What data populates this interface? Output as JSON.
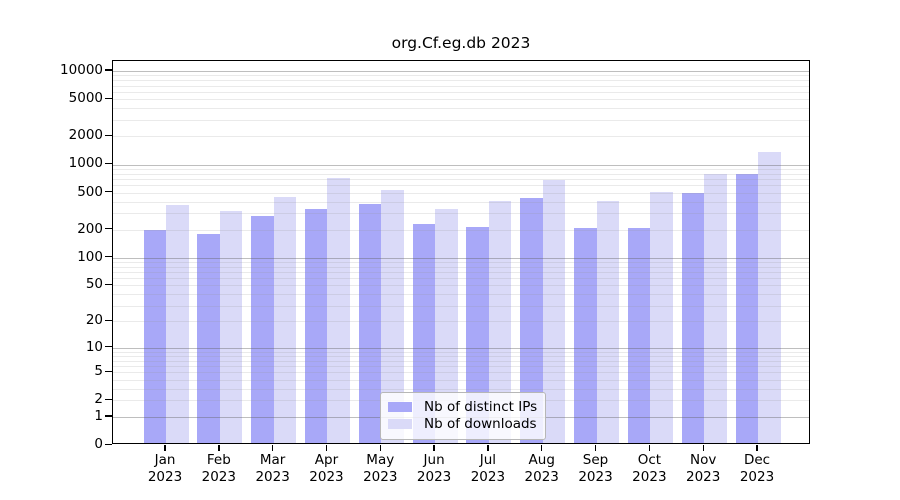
{
  "chart_data": {
    "type": "bar",
    "title": "org.Cf.eg.db 2023",
    "categories": [
      "Jan 2023",
      "Feb 2023",
      "Mar 2023",
      "Apr 2023",
      "May 2023",
      "Jun 2023",
      "Jul 2023",
      "Aug 2023",
      "Sep 2023",
      "Oct 2023",
      "Nov 2023",
      "Dec 2023"
    ],
    "series": [
      {
        "name": "Nb of distinct IPs",
        "color": "#a8a8f8",
        "values": [
          190,
          170,
          270,
          315,
          355,
          220,
          205,
          420,
          200,
          198,
          470,
          750
        ]
      },
      {
        "name": "Nb of downloads",
        "color": "#dadaf8",
        "values": [
          350,
          300,
          430,
          680,
          510,
          320,
          390,
          650,
          385,
          480,
          750,
          1290
        ]
      }
    ],
    "yscale": "log10(1+x)",
    "yticks": [
      0,
      1,
      2,
      5,
      10,
      20,
      50,
      100,
      200,
      500,
      1000,
      2000,
      5000,
      10000
    ],
    "major_gridlines": [
      1,
      10,
      100,
      1000,
      10000
    ],
    "minor_gridline_mantissas": [
      2,
      3,
      4,
      5,
      6,
      7,
      8,
      9
    ],
    "minor_gridline_decades": [
      1,
      10,
      100,
      1000
    ],
    "ylim": [
      0,
      12000
    ],
    "grid": true,
    "legend_position": "bottom-center",
    "colors": {
      "grid_major": "#b0b0b0",
      "grid_minor": "#e9e9e9",
      "axis": "#000000"
    }
  }
}
